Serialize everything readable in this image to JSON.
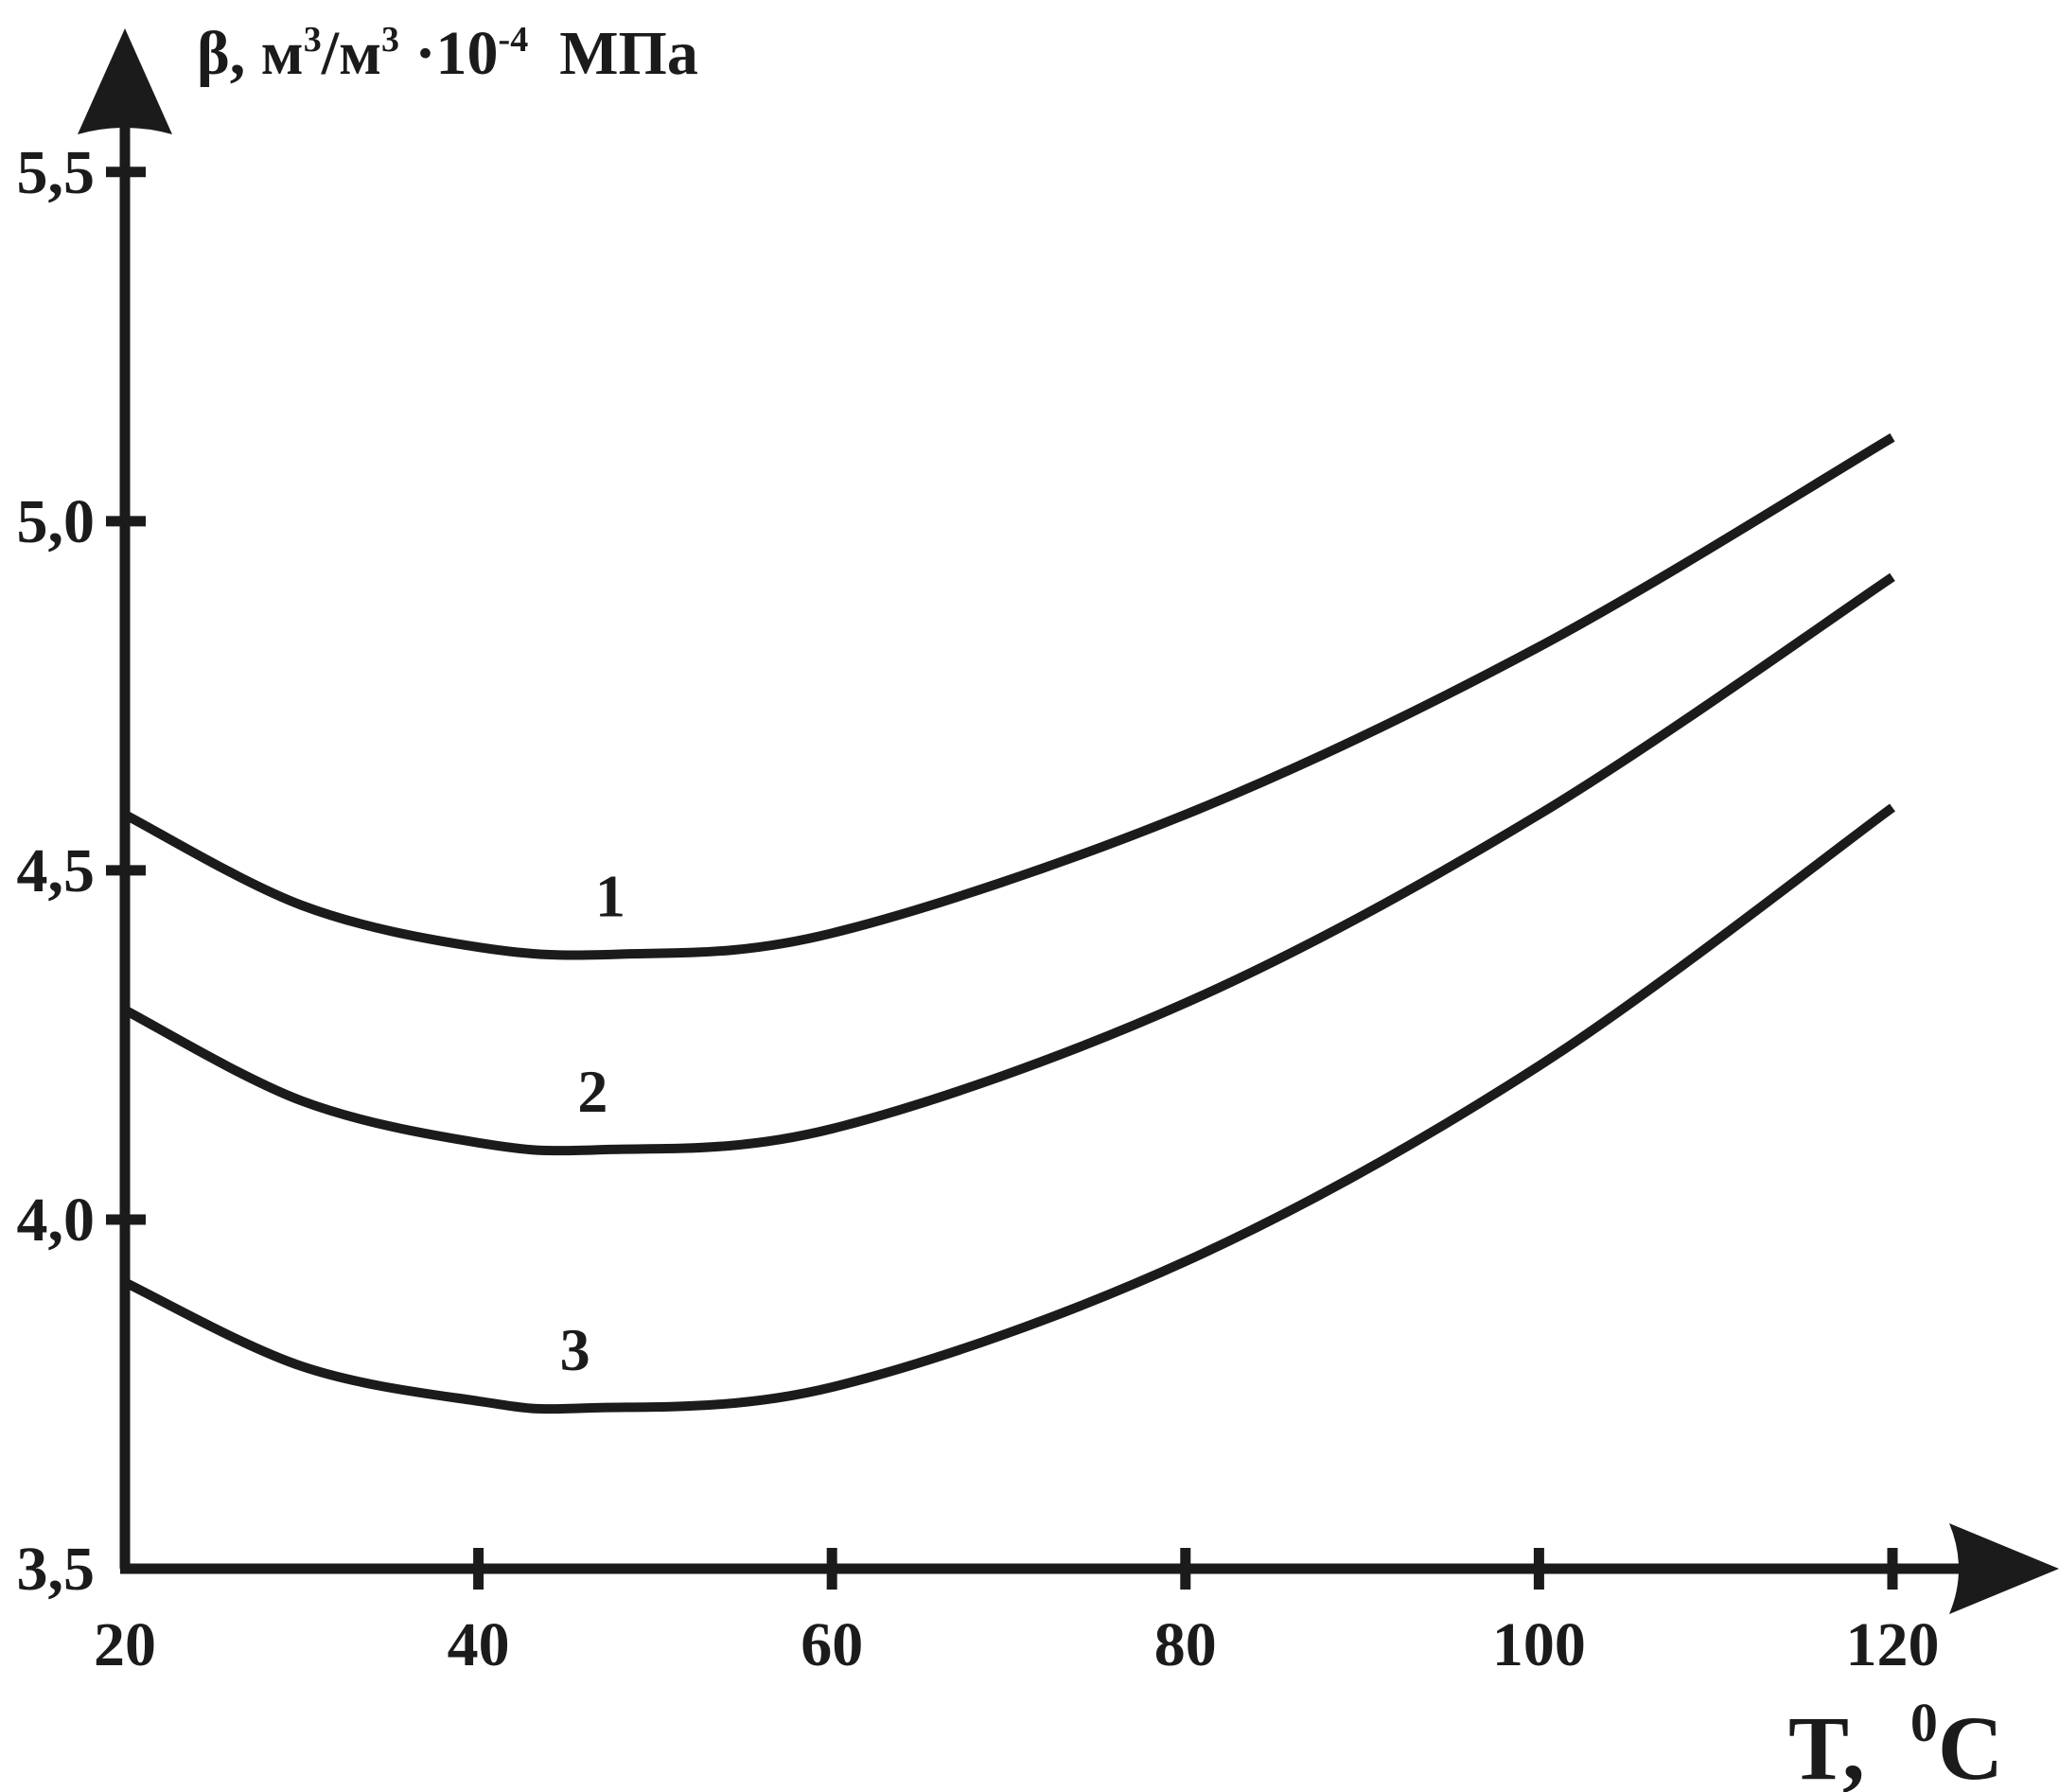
{
  "chart_data": {
    "type": "line",
    "title": "",
    "ylabel": {
      "prefix": "β, м",
      "sup1": "3",
      "mid": "/м",
      "sup2": "3",
      "mid2": " ·10",
      "sup3": "-4",
      "suffix": "  МПа"
    },
    "xlabel": {
      "prefix": "T,  ",
      "sup": "0",
      "suffix": "C"
    },
    "xlim": [
      20,
      120
    ],
    "ylim": [
      3.5,
      5.6
    ],
    "x_ticks": [
      {
        "value": 20,
        "label": "20"
      },
      {
        "value": 40,
        "label": "40"
      },
      {
        "value": 60,
        "label": "60"
      },
      {
        "value": 80,
        "label": "80"
      },
      {
        "value": 100,
        "label": "100"
      },
      {
        "value": 120,
        "label": "120"
      }
    ],
    "y_ticks": [
      {
        "value": 3.5,
        "label": "3,5"
      },
      {
        "value": 4.0,
        "label": "4,0"
      },
      {
        "value": 4.5,
        "label": "4,5"
      },
      {
        "value": 5.0,
        "label": "5,0"
      },
      {
        "value": 5.5,
        "label": "5,5"
      }
    ],
    "grid": false,
    "series": [
      {
        "label": "1",
        "x": [
          20,
          30,
          40,
          48,
          60,
          80,
          100,
          120
        ],
        "y": [
          4.58,
          4.45,
          4.39,
          4.38,
          4.41,
          4.58,
          4.82,
          5.12
        ]
      },
      {
        "label": "2",
        "x": [
          20,
          30,
          40,
          47,
          60,
          80,
          100,
          120
        ],
        "y": [
          4.3,
          4.17,
          4.11,
          4.1,
          4.13,
          4.31,
          4.58,
          4.92
        ]
      },
      {
        "label": "3",
        "x": [
          20,
          30,
          40,
          46,
          60,
          80,
          100,
          120
        ],
        "y": [
          3.91,
          3.79,
          3.74,
          3.73,
          3.76,
          3.94,
          4.22,
          4.59
        ]
      }
    ]
  },
  "colors": {
    "ink": "#1b1b1b",
    "background": "#ffffff"
  }
}
